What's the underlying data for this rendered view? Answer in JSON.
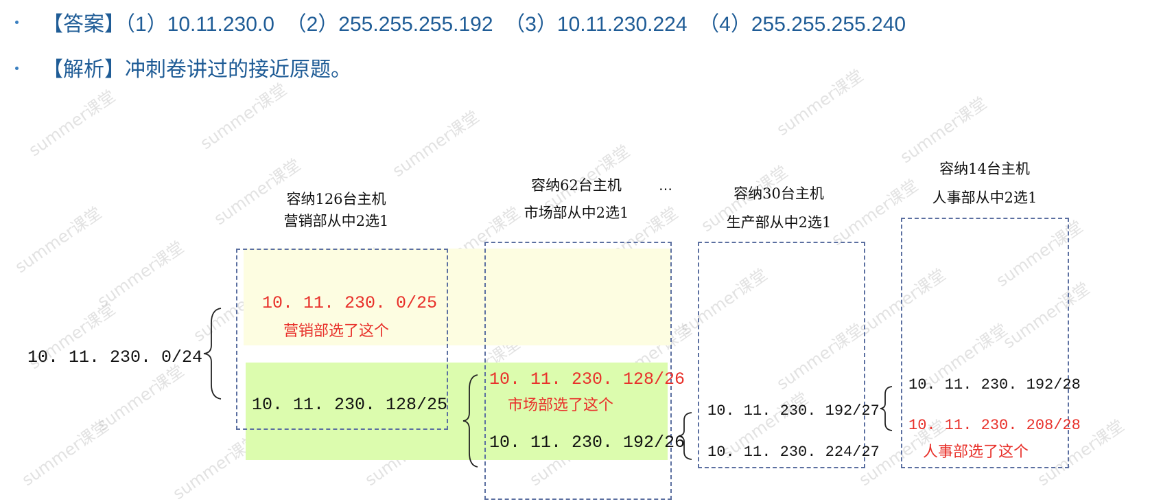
{
  "answer": {
    "bracket_label": "【答案】",
    "items": [
      "（1）10.11.230.0",
      "（2）255.255.255.192",
      "（3）10.11.230.224",
      "（4）255.255.255.240"
    ]
  },
  "analysis": {
    "bracket_label": "【解析】",
    "text": "冲刺卷讲过的接近原题。"
  },
  "diagram": {
    "root": "10. 11. 230. 0/24",
    "ellipsis": "…",
    "groups": [
      {
        "capacity": "容纳126台主机",
        "dept": "营销部从中2选1",
        "options": [
          "10. 11. 230. 0/25",
          "10. 11. 230. 128/25"
        ],
        "chosen_note": "营销部选了这个"
      },
      {
        "capacity": "容纳62台主机",
        "dept": "市场部从中2选1",
        "options": [
          "10. 11. 230. 128/26",
          "10. 11. 230. 192/26"
        ],
        "chosen_note": "市场部选了这个"
      },
      {
        "capacity": "容纳30台主机",
        "dept": "生产部从中2选1",
        "options": [
          "10. 11. 230. 192/27",
          "10. 11. 230. 224/27"
        ]
      },
      {
        "capacity": "容纳14台主机",
        "dept": "人事部从中2选1",
        "options": [
          "10. 11. 230. 192/28",
          "10. 11. 230. 208/28"
        ],
        "chosen_note": "人事部选了这个"
      }
    ]
  },
  "watermark": "summer课堂",
  "colors": {
    "heading": "#1f5c96",
    "chosen": "#e8302a",
    "yellow_bg": "#fdfde1",
    "green_bg": "#dcfcae",
    "dashed_border": "#5b6fa0"
  }
}
